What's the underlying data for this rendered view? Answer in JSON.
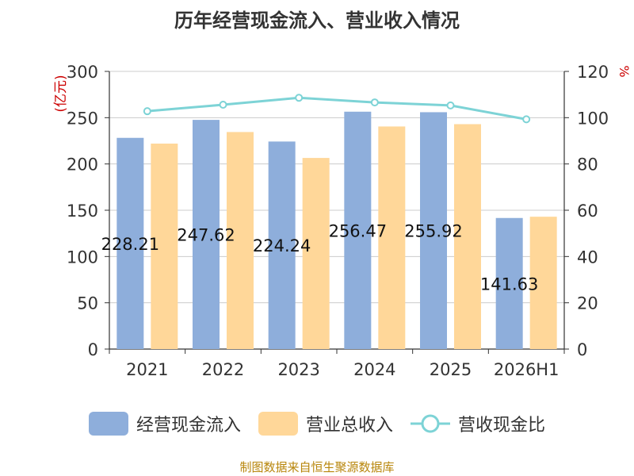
{
  "title": "历年经营现金流入、营业收入情况",
  "source": "制图数据来自恒生聚源数据库",
  "colors": {
    "cashflow": "#8eaedb",
    "revenue": "#ffd799",
    "ratio": "#7dd3d6",
    "unit": "#cc0000"
  },
  "chart_data": {
    "type": "bar",
    "categories": [
      "2021",
      "2022",
      "2023",
      "2024",
      "2025",
      "2026H1"
    ],
    "y_left": {
      "label": "(亿元)",
      "ylim": [
        0,
        300
      ],
      "ticks": [
        0,
        50,
        100,
        150,
        200,
        250,
        300
      ]
    },
    "y_right": {
      "label": "%",
      "ylim": [
        0,
        120
      ],
      "ticks": [
        0,
        20,
        40,
        60,
        80,
        100,
        120
      ]
    },
    "grid": true,
    "legend_position": "bottom",
    "series": [
      {
        "name": "经营现金流入",
        "type": "bar",
        "axis": "left",
        "values": [
          228.21,
          247.62,
          224.24,
          256.47,
          255.92,
          141.63
        ],
        "labels": [
          "228.21",
          "247.62",
          "224.24",
          "256.47",
          "255.92",
          "141.63"
        ]
      },
      {
        "name": "营业总收入",
        "type": "bar",
        "axis": "left",
        "values": [
          222.0,
          234.5,
          206.5,
          240.5,
          243.0,
          143.0
        ]
      },
      {
        "name": "营收现金比",
        "type": "line",
        "axis": "right",
        "values": [
          102.8,
          105.6,
          108.6,
          106.6,
          105.3,
          99.3
        ]
      }
    ]
  }
}
